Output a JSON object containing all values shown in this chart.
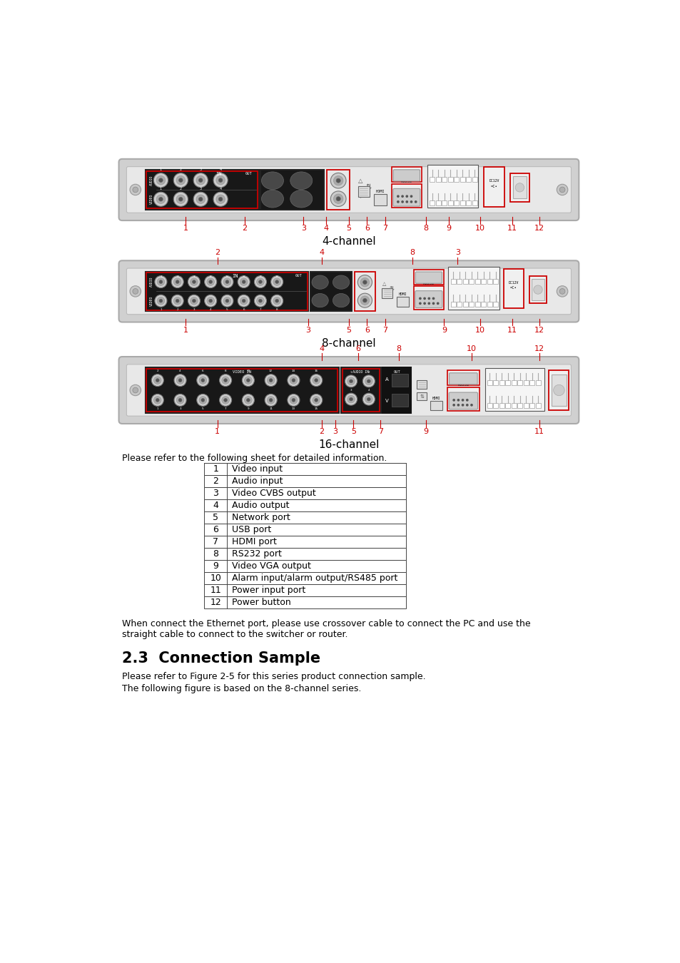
{
  "bg_color": "#ffffff",
  "red": "#cc0000",
  "black": "#000000",
  "panel_face": "#d4d4d4",
  "panel_inner": "#e8e8e8",
  "panel_edge": "#aaaaaa",
  "dark_box": "#1a1a1a",
  "dark_box_edge": "#333333",
  "port_fill": "#dddddd",
  "port_edge": "#666666",
  "bnc_r1": "#cccccc",
  "bnc_r2": "#999999",
  "bnc_r3": "#555555",
  "alarm_fill": "#f0f0f0",
  "channel_labels": [
    "4-channel",
    "8-channel",
    "16-channel"
  ],
  "table_rows": [
    [
      "1",
      "Video input"
    ],
    [
      "2",
      "Audio input"
    ],
    [
      "3",
      "Video CVBS output"
    ],
    [
      "4",
      "Audio output"
    ],
    [
      "5",
      "Network port"
    ],
    [
      "6",
      "USB port"
    ],
    [
      "7",
      "HDMI port"
    ],
    [
      "8",
      "RS232 port"
    ],
    [
      "9",
      "Video VGA output"
    ],
    [
      "10",
      "Alarm input/alarm output/RS485 port"
    ],
    [
      "11",
      "Power input port"
    ],
    [
      "12",
      "Power button"
    ]
  ],
  "ref_text": "Please refer to the following sheet for detailed information.",
  "note_line1": "When connect the Ethernet port, please use crossover cable to connect the PC and use the",
  "note_line2": "straight cable to connect to the switcher or router.",
  "section_title": "2.3  Connection Sample",
  "body_line1": "Please refer to Figure 2-5 for this series product connection sample.",
  "body_line2": "The following figure is based on the 8-channel series."
}
